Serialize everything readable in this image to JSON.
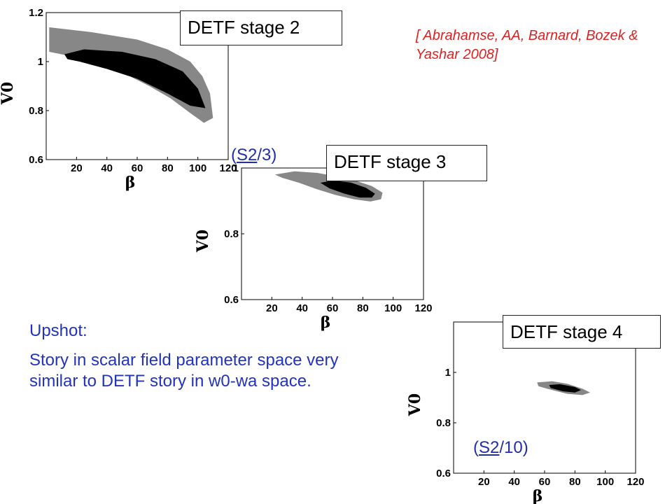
{
  "citation": "[ Abrahamse, AA, Barnard, Bozek & Yashar 2008]",
  "upshot": {
    "heading": "Upshot:",
    "body": "Story in scalar field parameter space very similar to DETF story in w0-wa space."
  },
  "colors": {
    "outer_contour": "#878787",
    "inner_contour": "#000000",
    "text_blue": "#2233c0",
    "ratio_blue": "#1f2fb0",
    "citation_red": "#e02020"
  },
  "chart_data": [
    {
      "type": "contour",
      "label": "DETF stage 2",
      "xlabel": "β",
      "ylabel": "V0",
      "xlim": [
        0,
        120
      ],
      "ylim": [
        0.6,
        1.2
      ],
      "xticks": [
        "20",
        "40",
        "60",
        "80",
        "100",
        "120"
      ],
      "yticks": [
        "0.6",
        "0.8",
        "1",
        "1.2"
      ],
      "outer_region": [
        [
          2,
          1.14
        ],
        [
          30,
          1.12
        ],
        [
          60,
          1.09
        ],
        [
          80,
          1.05
        ],
        [
          95,
          1.0
        ],
        [
          103,
          0.94
        ],
        [
          108,
          0.87
        ],
        [
          110,
          0.77
        ],
        [
          104,
          0.75
        ],
        [
          95,
          0.79
        ],
        [
          82,
          0.85
        ],
        [
          68,
          0.9
        ],
        [
          52,
          0.95
        ],
        [
          35,
          0.99
        ],
        [
          18,
          1.02
        ],
        [
          2,
          1.04
        ]
      ],
      "inner_region": [
        [
          12,
          1.03
        ],
        [
          25,
          1.05
        ],
        [
          50,
          1.04
        ],
        [
          72,
          1.01
        ],
        [
          90,
          0.96
        ],
        [
          100,
          0.89
        ],
        [
          105,
          0.81
        ],
        [
          95,
          0.82
        ],
        [
          80,
          0.87
        ],
        [
          60,
          0.93
        ],
        [
          40,
          0.97
        ],
        [
          22,
          1.0
        ],
        [
          14,
          1.01
        ]
      ]
    },
    {
      "type": "contour",
      "label": "DETF stage 3",
      "ratio_prefix": "(",
      "ratio_underlined": "S2",
      "ratio_suffix": "/3)",
      "xlabel": "β",
      "ylabel": "V0",
      "xlim": [
        0,
        120
      ],
      "ylim": [
        0.6,
        1.0
      ],
      "xticks": [
        "20",
        "40",
        "60",
        "80",
        "100",
        "120"
      ],
      "yticks": [
        "0.6",
        "0.8",
        "1"
      ],
      "outer_region": [
        [
          22,
          0.98
        ],
        [
          35,
          0.99
        ],
        [
          50,
          0.985
        ],
        [
          62,
          0.975
        ],
        [
          75,
          0.962
        ],
        [
          86,
          0.945
        ],
        [
          93,
          0.925
        ],
        [
          92,
          0.905
        ],
        [
          85,
          0.898
        ],
        [
          74,
          0.905
        ],
        [
          62,
          0.918
        ],
        [
          50,
          0.935
        ],
        [
          38,
          0.955
        ],
        [
          27,
          0.97
        ]
      ],
      "inner_region": [
        [
          52,
          0.955
        ],
        [
          60,
          0.962
        ],
        [
          72,
          0.956
        ],
        [
          82,
          0.94
        ],
        [
          88,
          0.922
        ],
        [
          86,
          0.91
        ],
        [
          78,
          0.91
        ],
        [
          68,
          0.922
        ],
        [
          58,
          0.938
        ]
      ]
    },
    {
      "type": "contour",
      "label": "DETF stage 4",
      "ratio_prefix": "(",
      "ratio_underlined": "S2",
      "ratio_suffix": "/10)",
      "xlabel": "β",
      "ylabel": "V0",
      "xlim": [
        0,
        120
      ],
      "ylim": [
        0.6,
        1.2
      ],
      "xticks": [
        "20",
        "40",
        "60",
        "80",
        "100",
        "120"
      ],
      "yticks": [
        "0.6",
        "0.8",
        "1"
      ],
      "outer_region": [
        [
          55,
          0.96
        ],
        [
          65,
          0.965
        ],
        [
          75,
          0.955
        ],
        [
          85,
          0.935
        ],
        [
          90,
          0.92
        ],
        [
          85,
          0.91
        ],
        [
          75,
          0.915
        ],
        [
          65,
          0.93
        ],
        [
          56,
          0.945
        ]
      ],
      "inner_region": [
        [
          63,
          0.95
        ],
        [
          70,
          0.953
        ],
        [
          80,
          0.942
        ],
        [
          84,
          0.93
        ],
        [
          80,
          0.92
        ],
        [
          72,
          0.925
        ],
        [
          64,
          0.938
        ]
      ]
    }
  ]
}
